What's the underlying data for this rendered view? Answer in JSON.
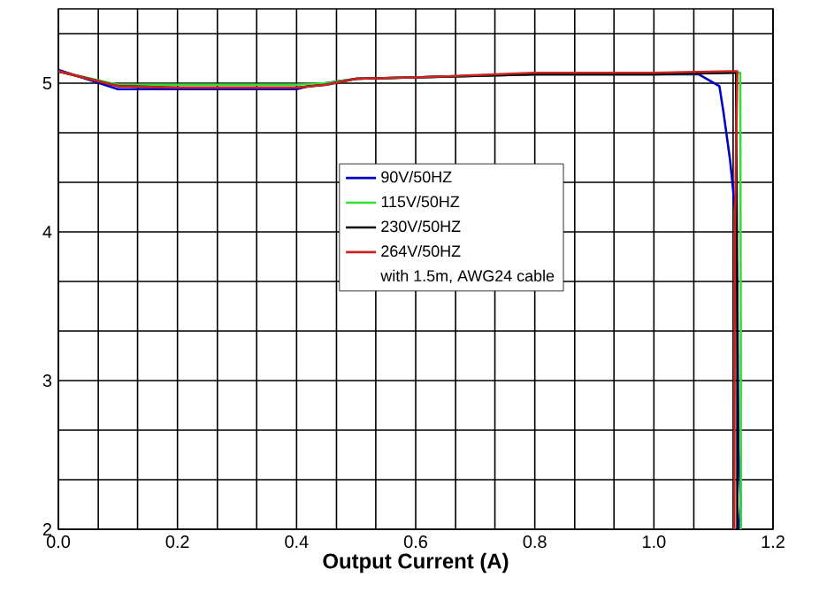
{
  "chart_data": {
    "type": "line",
    "xlabel": "Output Current (A)",
    "xlim": [
      0,
      1.2
    ],
    "ylim": [
      2,
      5.5
    ],
    "xticks": [
      {
        "value": 0,
        "label": "0.0"
      },
      {
        "value": 0.067,
        "label": null
      },
      {
        "value": 0.133,
        "label": null
      },
      0.2,
      {
        "value": 0.267,
        "label": null
      },
      {
        "value": 0.333,
        "label": null
      },
      0.4,
      {
        "value": 0.467,
        "label": null
      },
      {
        "value": 0.533,
        "label": null
      },
      0.6,
      {
        "value": 0.667,
        "label": null
      },
      {
        "value": 0.733,
        "label": null
      },
      0.8,
      {
        "value": 0.867,
        "label": null
      },
      {
        "value": 0.933,
        "label": null
      },
      {
        "value": 1.0,
        "label": "1.0"
      },
      {
        "value": 1.067,
        "label": null
      },
      {
        "value": 1.133,
        "label": null
      },
      1.2
    ],
    "yticks": [
      2,
      {
        "value": 2.333,
        "label": null
      },
      {
        "value": 2.667,
        "label": null
      },
      3,
      {
        "value": 3.333,
        "label": null
      },
      {
        "value": 3.667,
        "label": null
      },
      4,
      {
        "value": 4.333,
        "label": null
      },
      {
        "value": 4.667,
        "label": null
      },
      5,
      {
        "value": 5.333,
        "label": null
      }
    ],
    "grid": true,
    "legend": "center",
    "line_style": "solid",
    "annotations": [
      "with 1.5m, AWG24 cable"
    ],
    "series": [
      {
        "name": "90V/50HZ",
        "color": "#0000cc",
        "x": [
          0,
          0.1,
          0.2,
          0.4,
          0.43,
          0.5,
          0.61,
          0.8,
          1.0,
          1.075,
          1.11,
          1.117,
          1.128,
          1.137,
          1.14,
          1.142,
          1.146,
          1.143
        ],
        "values": [
          5.09,
          4.96,
          4.96,
          4.96,
          4.99,
          5.03,
          5.04,
          5.06,
          5.06,
          5.06,
          4.98,
          4.8,
          4.48,
          4.12,
          3.61,
          2.54,
          2.19,
          2.0
        ]
      },
      {
        "name": "115V/50HZ",
        "color": "#33dd33",
        "x": [
          0,
          0.1,
          0.2,
          0.4,
          0.45,
          0.5,
          0.61,
          0.8,
          1.0,
          1.129,
          1.145,
          1.146,
          1.146
        ],
        "values": [
          5.08,
          4.99,
          4.99,
          4.99,
          5.0,
          5.03,
          5.04,
          5.06,
          5.06,
          5.07,
          5.07,
          3.0,
          2.0
        ]
      },
      {
        "name": "230V/50HZ",
        "color": "#000000",
        "x": [
          0,
          0.1,
          0.2,
          0.4,
          0.45,
          0.5,
          0.61,
          0.8,
          1.0,
          1.13,
          1.138,
          1.14,
          1.14
        ],
        "values": [
          5.08,
          4.98,
          4.97,
          4.97,
          4.99,
          5.03,
          5.04,
          5.06,
          5.06,
          5.07,
          5.07,
          3.5,
          2.0
        ]
      },
      {
        "name": "264V/50HZ",
        "color": "#cc2222",
        "x": [
          0,
          0.1,
          0.2,
          0.4,
          0.45,
          0.5,
          0.61,
          0.8,
          1.0,
          1.13,
          1.14,
          1.136,
          1.135
        ],
        "values": [
          5.08,
          4.98,
          4.97,
          4.97,
          4.99,
          5.03,
          5.04,
          5.07,
          5.07,
          5.08,
          5.08,
          4.0,
          2.0
        ]
      }
    ]
  }
}
